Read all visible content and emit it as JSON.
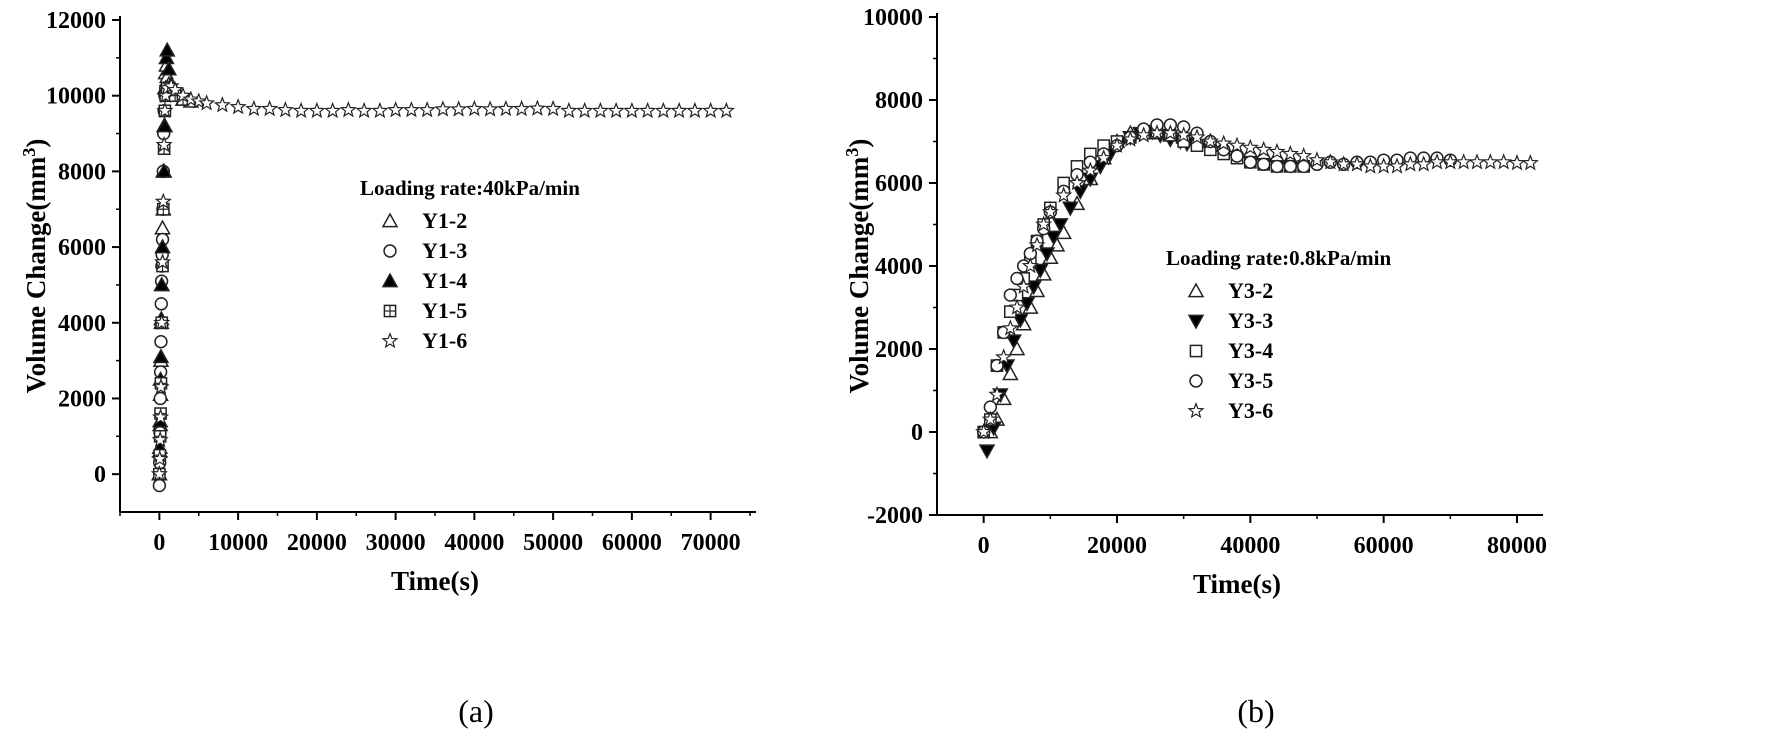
{
  "chart_data": [
    {
      "type": "scatter",
      "panel_label": "(a)",
      "xlabel": "Time(s)",
      "ylabel": "Volume Change(mm3)",
      "xlim": [
        -5000,
        75000
      ],
      "ylim": [
        -1000,
        12000
      ],
      "xticks": [
        0,
        10000,
        20000,
        30000,
        40000,
        50000,
        60000,
        70000
      ],
      "yticks": [
        0,
        2000,
        4000,
        6000,
        8000,
        10000,
        12000
      ],
      "legend_title": "Loading rate:40kPa/min",
      "legend_position": "center",
      "grid": false,
      "series": [
        {
          "name": "Y1-2",
          "marker": "triangle-open",
          "x": [
            0,
            50,
            100,
            150,
            200,
            250,
            300,
            400,
            500,
            600,
            700,
            800,
            900,
            1000,
            1200,
            1500,
            2000,
            3000,
            4000
          ],
          "y": [
            0,
            600,
            1300,
            2100,
            3000,
            4000,
            5000,
            6500,
            8000,
            9200,
            10200,
            10600,
            10800,
            10500,
            10300,
            10100,
            10000,
            9900,
            9850
          ]
        },
        {
          "name": "Y1-3",
          "marker": "circle-open",
          "x": [
            0,
            40,
            80,
            120,
            160,
            200,
            240,
            280,
            320,
            360,
            400,
            450,
            500,
            550,
            600,
            700,
            800
          ],
          "y": [
            -300,
            300,
            1100,
            2000,
            2700,
            3500,
            4500,
            5100,
            5500,
            5800,
            6200,
            7000,
            8000,
            9000,
            9600,
            10000,
            10200
          ]
        },
        {
          "name": "Y1-4",
          "marker": "triangle-filled",
          "x": [
            0,
            50,
            100,
            150,
            200,
            250,
            300,
            400,
            500,
            600,
            700,
            800,
            900,
            1000,
            1200,
            1500,
            2000
          ],
          "y": [
            0,
            700,
            1400,
            2500,
            3100,
            4100,
            5000,
            6000,
            7000,
            8000,
            9200,
            10200,
            11000,
            11200,
            10700,
            10300,
            10000
          ]
        },
        {
          "name": "Y1-5",
          "marker": "square-plus",
          "x": [
            0,
            50,
            100,
            150,
            200,
            300,
            400,
            500,
            600,
            700,
            800,
            1000,
            1500,
            2000,
            3000
          ],
          "y": [
            0,
            500,
            1000,
            1600,
            2400,
            4000,
            5500,
            7000,
            8600,
            9600,
            10000,
            10200,
            10100,
            10000,
            9900
          ]
        },
        {
          "name": "Y1-6",
          "marker": "star-open",
          "x": [
            0,
            50,
            100,
            150,
            200,
            300,
            400,
            500,
            600,
            700,
            800,
            1000,
            1500,
            2000,
            3000,
            4000,
            5000,
            6000,
            8000,
            10000,
            12000,
            14000,
            16000,
            18000,
            20000,
            22000,
            24000,
            26000,
            28000,
            30000,
            32000,
            34000,
            36000,
            38000,
            40000,
            42000,
            44000,
            46000,
            48000,
            50000,
            52000,
            54000,
            56000,
            58000,
            60000,
            62000,
            64000,
            66000,
            68000,
            70000,
            72000
          ],
          "y": [
            0,
            400,
            900,
            1500,
            2300,
            4000,
            5600,
            7200,
            8700,
            9600,
            10000,
            10200,
            10250,
            10150,
            10000,
            9900,
            9850,
            9800,
            9750,
            9700,
            9650,
            9650,
            9620,
            9600,
            9600,
            9600,
            9620,
            9600,
            9600,
            9620,
            9620,
            9620,
            9640,
            9640,
            9650,
            9640,
            9650,
            9650,
            9660,
            9650,
            9600,
            9600,
            9600,
            9600,
            9600,
            9600,
            9600,
            9600,
            9600,
            9600,
            9600
          ]
        }
      ]
    },
    {
      "type": "scatter",
      "panel_label": "(b)",
      "xlabel": "Time(s)",
      "ylabel": "Volume Change(mm3)",
      "xlim": [
        -7000,
        83000
      ],
      "ylim": [
        -2000,
        10000
      ],
      "xticks": [
        0,
        20000,
        40000,
        60000,
        80000
      ],
      "yticks": [
        -2000,
        0,
        2000,
        4000,
        6000,
        8000,
        10000
      ],
      "legend_title": "Loading rate:0.8kPa/min",
      "legend_position": "center",
      "grid": false,
      "series": [
        {
          "name": "Y3-2",
          "marker": "triangle-open",
          "x": [
            1000,
            2000,
            3000,
            4000,
            5000,
            6000,
            7000,
            8000,
            9000,
            10000,
            11000,
            12000,
            14000,
            16000,
            18000,
            20000,
            22000,
            24000,
            26000,
            28000,
            30000,
            32000,
            34000,
            36000,
            38000,
            40000,
            42000,
            44000,
            46000,
            48000
          ],
          "y": [
            0,
            300,
            800,
            1400,
            2000,
            2600,
            3000,
            3400,
            3800,
            4200,
            4500,
            4800,
            5500,
            6100,
            6600,
            7000,
            7200,
            7250,
            7200,
            7150,
            7100,
            7050,
            7000,
            6900,
            6800,
            6750,
            6700,
            6650,
            6600,
            6550
          ]
        },
        {
          "name": "Y3-3",
          "marker": "triangle-down-filled",
          "x": [
            500,
            1500,
            2500,
            3500,
            4500,
            5500,
            6500,
            7500,
            8500,
            9500,
            10500,
            11500,
            13000,
            14500,
            16000,
            17500,
            19000,
            20500,
            22000,
            23500,
            25000,
            26500,
            28000,
            29500,
            30500
          ],
          "y": [
            -450,
            100,
            900,
            1600,
            2200,
            2700,
            3100,
            3500,
            3900,
            4300,
            4700,
            5000,
            5400,
            5800,
            6100,
            6400,
            6700,
            6950,
            7100,
            7200,
            7250,
            7150,
            7050,
            7000,
            6950
          ]
        },
        {
          "name": "Y3-4",
          "marker": "square-open",
          "x": [
            0,
            1000,
            2000,
            3000,
            4000,
            5000,
            6000,
            7000,
            8000,
            9000,
            10000,
            12000,
            14000,
            16000,
            18000,
            20000,
            22000,
            24000,
            26000,
            28000,
            30000,
            32000,
            34000,
            36000,
            38000,
            40000,
            42000,
            44000,
            46000,
            48000
          ],
          "y": [
            0,
            300,
            1600,
            2400,
            2900,
            3300,
            3700,
            4100,
            4600,
            5000,
            5400,
            6000,
            6400,
            6700,
            6900,
            7000,
            7100,
            7200,
            7250,
            7150,
            7000,
            6900,
            6800,
            6700,
            6600,
            6500,
            6450,
            6400,
            6400,
            6400
          ]
        },
        {
          "name": "Y3-5",
          "marker": "circle-open",
          "x": [
            0,
            1000,
            2000,
            3000,
            4000,
            5000,
            6000,
            7000,
            8000,
            9000,
            10000,
            12000,
            14000,
            16000,
            18000,
            20000,
            22000,
            24000,
            26000,
            28000,
            30000,
            32000,
            34000,
            36000,
            38000,
            40000,
            42000,
            44000,
            46000,
            48000,
            50000,
            52000,
            54000,
            56000,
            58000,
            60000,
            62000,
            64000,
            66000,
            68000,
            70000
          ],
          "y": [
            0,
            600,
            1600,
            2400,
            3300,
            3700,
            4000,
            4300,
            4600,
            4900,
            5300,
            5800,
            6200,
            6500,
            6700,
            6900,
            7100,
            7300,
            7400,
            7400,
            7350,
            7200,
            7000,
            6800,
            6650,
            6500,
            6450,
            6400,
            6400,
            6400,
            6450,
            6500,
            6450,
            6500,
            6500,
            6550,
            6550,
            6600,
            6600,
            6600,
            6550
          ]
        },
        {
          "name": "Y3-6",
          "marker": "star-open",
          "x": [
            0,
            1000,
            2000,
            3000,
            4000,
            5000,
            6000,
            7000,
            8000,
            9000,
            10000,
            12000,
            14000,
            16000,
            18000,
            20000,
            22000,
            24000,
            26000,
            28000,
            30000,
            32000,
            34000,
            36000,
            38000,
            40000,
            42000,
            44000,
            46000,
            48000,
            50000,
            52000,
            54000,
            56000,
            58000,
            60000,
            62000,
            64000,
            66000,
            68000,
            70000,
            72000,
            74000,
            76000,
            78000,
            80000,
            82000
          ],
          "y": [
            0,
            300,
            900,
            1800,
            2500,
            3000,
            3500,
            4000,
            4500,
            5000,
            5300,
            5700,
            6000,
            6300,
            6600,
            6900,
            7050,
            7150,
            7200,
            7200,
            7150,
            7100,
            7000,
            6950,
            6900,
            6850,
            6800,
            6750,
            6700,
            6650,
            6550,
            6500,
            6450,
            6450,
            6400,
            6400,
            6400,
            6450,
            6450,
            6500,
            6500,
            6500,
            6500,
            6500,
            6500,
            6480,
            6480
          ]
        }
      ]
    }
  ]
}
